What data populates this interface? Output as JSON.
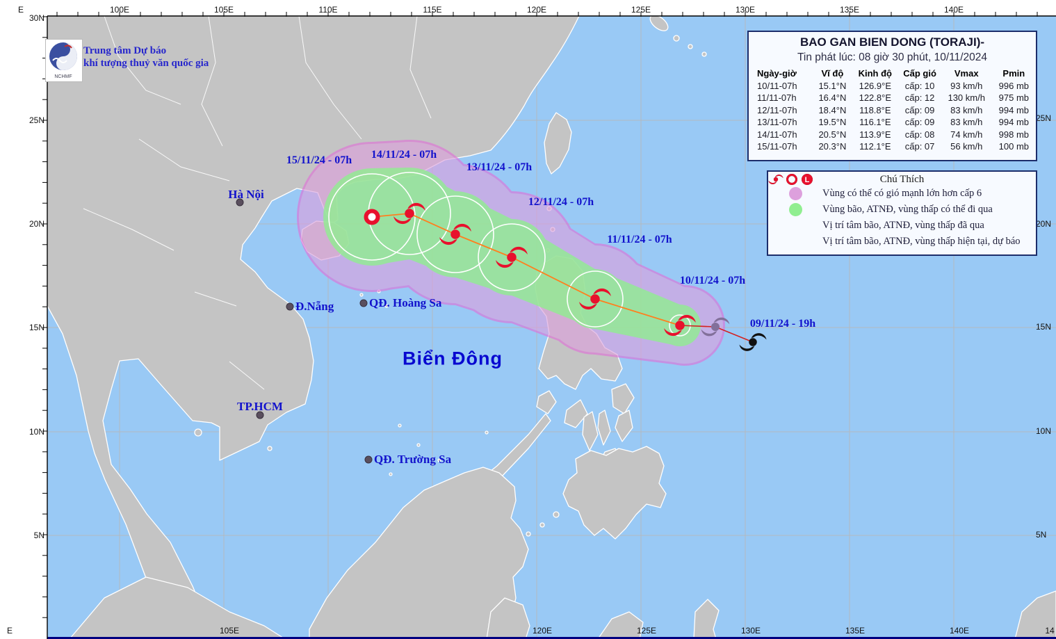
{
  "branding": {
    "org_line1": "Trung tâm Dự báo",
    "org_line2": "khí tượng thuỷ văn quốc gia",
    "logo_text": "NCHMF"
  },
  "info_box": {
    "title": "BAO GAN BIEN DONG (TORAJI)-",
    "issued": "Tin phát lúc: 08 giờ 30 phút, 10/11/2024",
    "columns": [
      "Ngày-giờ",
      "Vĩ độ",
      "Kinh độ",
      "Cấp gió",
      "Vmax",
      "Pmin"
    ],
    "rows": [
      [
        "10/11-07h",
        "15.1°N",
        "126.9°E",
        "cấp: 10",
        "93 km/h",
        "996 mb"
      ],
      [
        "11/11-07h",
        "16.4°N",
        "122.8°E",
        "cấp: 12",
        "130 km/h",
        "975 mb"
      ],
      [
        "12/11-07h",
        "18.4°N",
        "118.8°E",
        "cấp: 09",
        "83 km/h",
        "994 mb"
      ],
      [
        "13/11-07h",
        "19.5°N",
        "116.1°E",
        "cấp: 09",
        "83 km/h",
        "994 mb"
      ],
      [
        "14/11-07h",
        "20.5°N",
        "113.9°E",
        "cấp: 08",
        "74 km/h",
        "998 mb"
      ],
      [
        "15/11-07h",
        "20.3°N",
        "112.1°E",
        "cấp: 07",
        "56 km/h",
        "100 mb"
      ]
    ]
  },
  "legend": {
    "title": "Chú Thích",
    "items": [
      {
        "label": "Vùng có thể có gió mạnh lớn hơn cấp 6"
      },
      {
        "label": "Vùng bão, ATNĐ, vùng thấp có thể đi qua"
      },
      {
        "label": "Vị trí tâm bão, ATNĐ, vùng thấp đã qua"
      },
      {
        "label": "Vị trí tâm bão, ATNĐ, vùng thấp hiện tại, dự báo"
      }
    ]
  },
  "map_labels": {
    "sea_name": "Biển Đông",
    "cities": [
      {
        "name": "Hà Nội"
      },
      {
        "name": "Đ.Nẵng"
      },
      {
        "name": "TP.HCM"
      },
      {
        "name": "QĐ. Hoàng Sa"
      },
      {
        "name": "QĐ. Trường Sa"
      }
    ],
    "track_times": [
      "15/11/24 - 07h",
      "14/11/24 - 07h",
      "13/11/24 - 07h",
      "12/11/24 - 07h",
      "11/11/24 - 07h",
      "10/11/24 - 07h",
      "09/11/24 - 19h"
    ]
  },
  "axes": {
    "top": [
      "E",
      "100E",
      "105E",
      "110E",
      "115E",
      "120E",
      "125E",
      "130E",
      "135E",
      "140E"
    ],
    "left": [
      "30N",
      "25N",
      "20N",
      "15N",
      "10N",
      "5N"
    ],
    "right": [
      "25N",
      "20N",
      "15N",
      "10N",
      "5N"
    ],
    "bottom": [
      "E",
      "105E",
      "120E",
      "125E",
      "130E",
      "135E",
      "140E",
      "14"
    ]
  },
  "track": {
    "storm_name": "TORAJI",
    "forecast_points": [
      {
        "time": "10/11-07h",
        "lat": "15.1°N",
        "lon": "126.9°E",
        "wind_level": "cấp: 10",
        "vmax": "93 km/h",
        "pmin": "996 mb"
      },
      {
        "time": "11/11-07h",
        "lat": "16.4°N",
        "lon": "122.8°E",
        "wind_level": "cấp: 12",
        "vmax": "130 km/h",
        "pmin": "975 mb"
      },
      {
        "time": "12/11-07h",
        "lat": "18.4°N",
        "lon": "118.8°E",
        "wind_level": "cấp: 09",
        "vmax": "83 km/h",
        "pmin": "994 mb"
      },
      {
        "time": "13/11-07h",
        "lat": "19.5°N",
        "lon": "116.1°E",
        "wind_level": "cấp: 09",
        "vmax": "83 km/h",
        "pmin": "994 mb"
      },
      {
        "time": "14/11-07h",
        "lat": "20.5°N",
        "lon": "113.9°E",
        "wind_level": "cấp: 08",
        "vmax": "74 km/h",
        "pmin": "998 mb"
      },
      {
        "time": "15/11-07h",
        "lat": "20.3°N",
        "lon": "112.1°E",
        "wind_level": "cấp: 07",
        "vmax": "56 km/h",
        "pmin": "100 mb"
      }
    ],
    "past_times": [
      "09/11/24 - 19h"
    ]
  },
  "colors": {
    "sea": "#99c9f5",
    "land": "#c4c4c4",
    "wind_area_pink": "#dda0dd",
    "pass_area_green": "#90ee90",
    "forecast_line": "#ff7f1e",
    "past_line": "#d42020",
    "current_symbol": "#e8112d",
    "past_symbol": "#111111",
    "label_blue": "#1212cc"
  }
}
